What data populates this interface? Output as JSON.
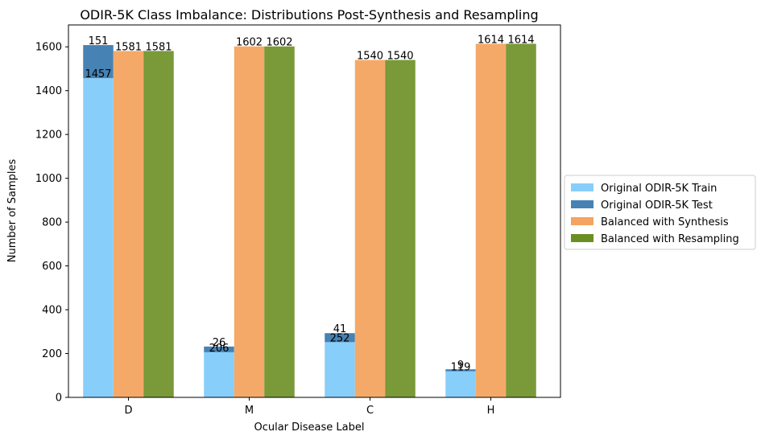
{
  "chart_data": {
    "type": "bar",
    "title": "ODIR-5K Class Imbalance: Distributions Post-Synthesis and Resampling",
    "xlabel": "Ocular Disease Label",
    "ylabel": "Number of Samples",
    "categories": [
      "D",
      "M",
      "C",
      "H"
    ],
    "ylim": [
      0,
      1700
    ],
    "yticks": [
      0,
      200,
      400,
      600,
      800,
      1000,
      1200,
      1400,
      1600
    ],
    "grid": false,
    "legend_position": "center-right outside",
    "series": [
      {
        "name": "Original ODIR-5K Train",
        "values": [
          1457,
          206,
          252,
          119
        ],
        "color": "#87cefa",
        "stack": "original"
      },
      {
        "name": "Original ODIR-5K Test",
        "values": [
          151,
          26,
          41,
          9
        ],
        "color": "#4682b4",
        "stack": "original",
        "stacked_on": "Original ODIR-5K Train"
      },
      {
        "name": "Balanced with Synthesis",
        "values": [
          1581,
          1602,
          1540,
          1614
        ],
        "color": "#f4a460"
      },
      {
        "name": "Balanced with Resampling",
        "values": [
          1581,
          1602,
          1540,
          1614
        ],
        "color": "#6b8e23"
      }
    ],
    "data_labels": {
      "Original ODIR-5K Train": [
        "1457",
        "206",
        "252",
        "119"
      ],
      "Original ODIR-5K Test": [
        "151",
        "26",
        "41",
        "9"
      ],
      "Balanced with Synthesis": [
        "1581",
        "1602",
        "1540",
        "1614"
      ],
      "Balanced with Resampling": [
        "1581",
        "1602",
        "1540",
        "1614"
      ]
    }
  }
}
